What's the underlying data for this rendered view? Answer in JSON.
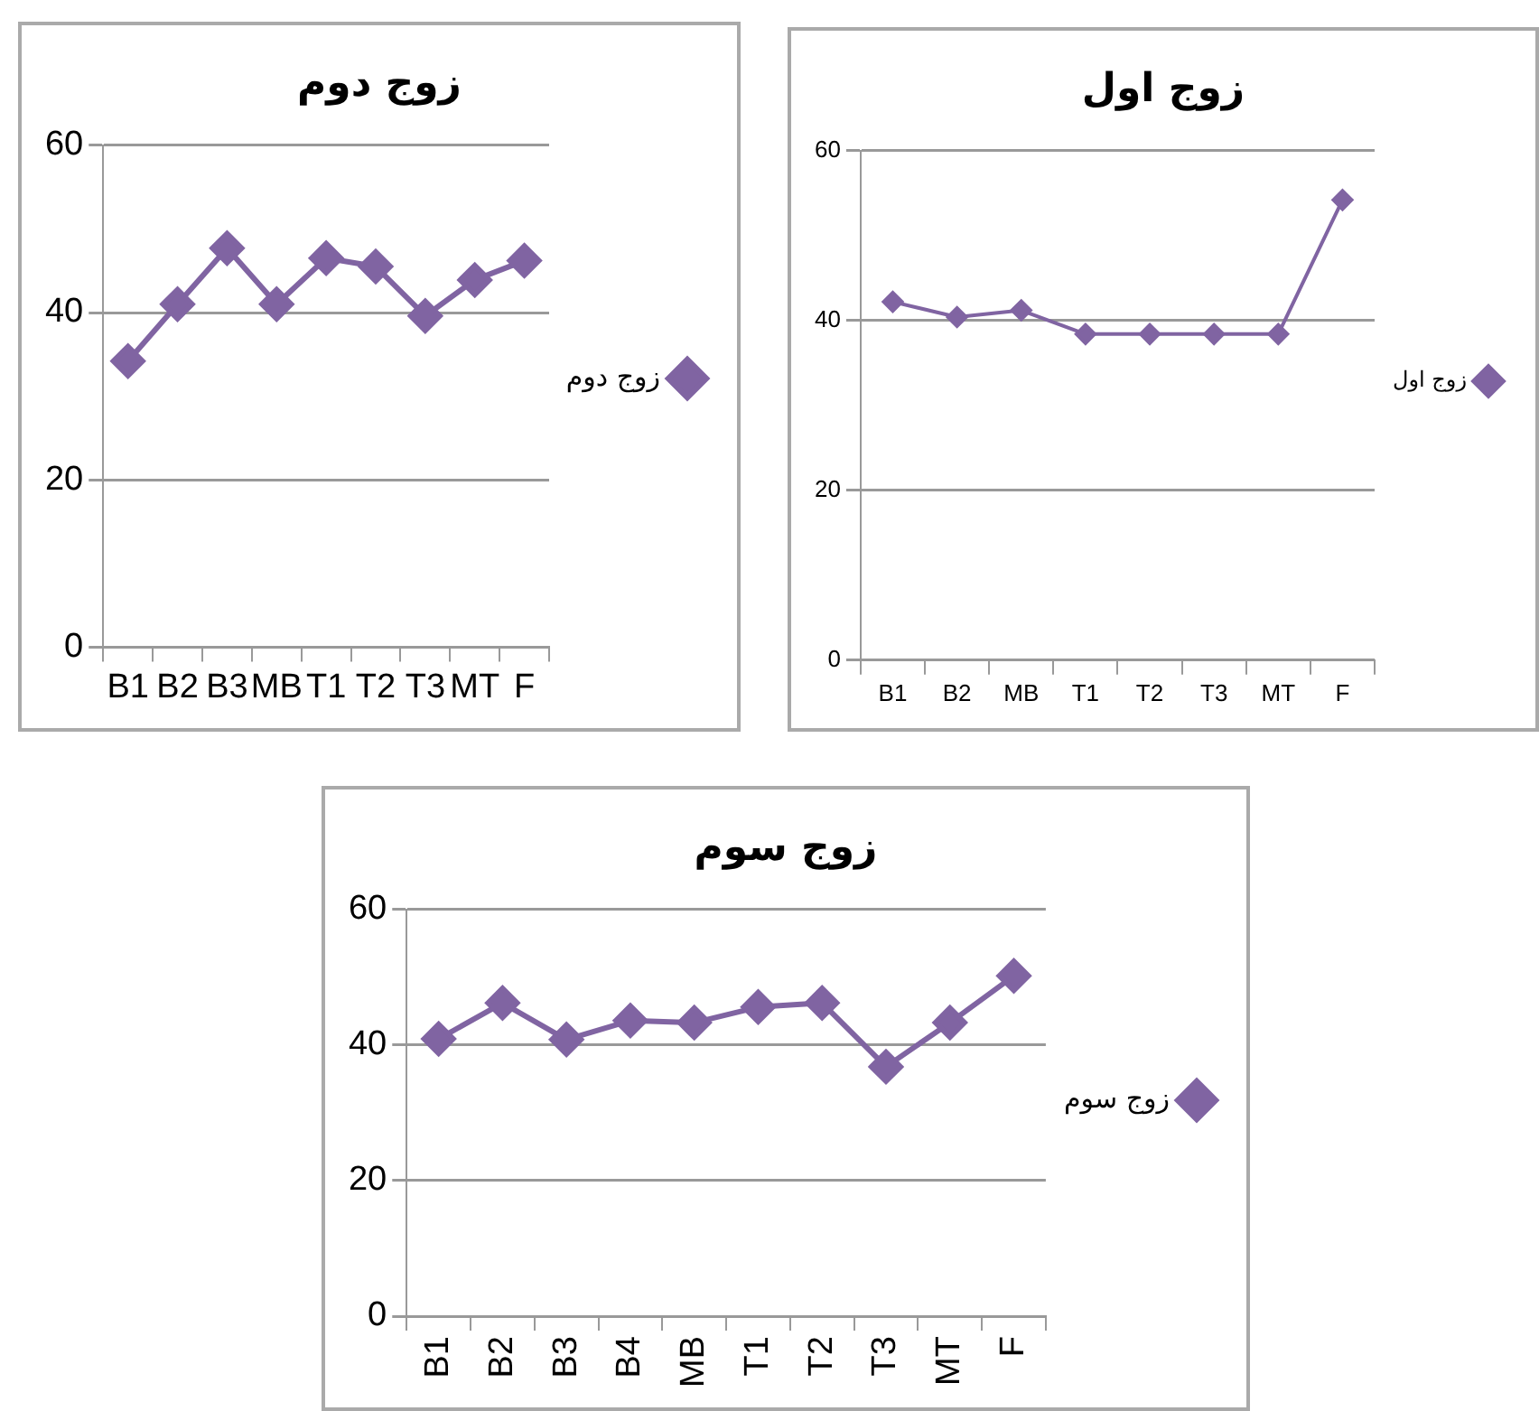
{
  "chart_data": [
    {
      "type": "line",
      "title": "زوج دوم",
      "categories": [
        "B1",
        "B2",
        "B3",
        "MB",
        "T1",
        "T2",
        "T3",
        "MT",
        "F"
      ],
      "series": [
        {
          "name": "زوج دوم",
          "color": "#8064a2",
          "values": [
            34.2,
            41,
            47.7,
            41,
            46.5,
            45.5,
            39.6,
            43.9,
            46.2
          ]
        }
      ],
      "ylim": [
        0,
        60
      ],
      "yticks": [
        0,
        20,
        40,
        60
      ],
      "grid": "y",
      "legend": "right",
      "marker": "diamond",
      "line_style": "solid"
    },
    {
      "type": "line",
      "title": "زوج اول",
      "categories": [
        "B1",
        "B2",
        "MB",
        "T1",
        "T2",
        "T3",
        "MT",
        "F"
      ],
      "series": [
        {
          "name": "زوج اول",
          "color": "#8064a2",
          "values": [
            42.2,
            40.4,
            41.2,
            38.4,
            38.4,
            38.4,
            38.4,
            54.2
          ]
        }
      ],
      "ylim": [
        0,
        60
      ],
      "yticks": [
        0,
        20,
        40,
        60
      ],
      "grid": "y",
      "legend": "right",
      "marker": "diamond",
      "line_style": "solid"
    },
    {
      "type": "line",
      "title": "زوج سوم",
      "categories": [
        "B1",
        "B2",
        "B3",
        "B4",
        "MB",
        "T1",
        "T2",
        "T3",
        "MT",
        "F"
      ],
      "series": [
        {
          "name": "زوج سوم",
          "color": "#8064a2",
          "values": [
            40.9,
            46.2,
            40.8,
            43.6,
            43.3,
            45.6,
            46.2,
            36.8,
            43.3,
            50.2
          ]
        }
      ],
      "ylim": [
        0,
        60
      ],
      "yticks": [
        0,
        20,
        40,
        60
      ],
      "grid": "y",
      "legend": "right",
      "marker": "diamond",
      "line_style": "solid"
    }
  ]
}
